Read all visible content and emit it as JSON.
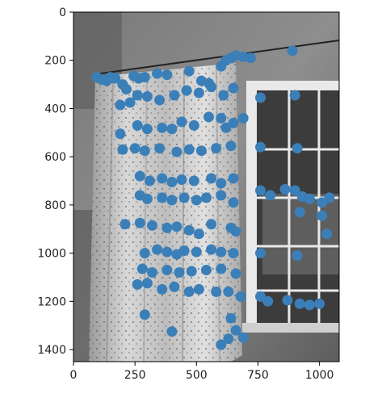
{
  "chart_data": {
    "type": "scatter",
    "title": "",
    "xlabel": "",
    "ylabel": "",
    "xlim": [
      0,
      1080
    ],
    "ylim": [
      1450,
      0
    ],
    "y_inverted": true,
    "x_ticks": [
      "0",
      "250",
      "500",
      "750",
      "1000"
    ],
    "y_ticks": [
      "0",
      "200",
      "400",
      "600",
      "800",
      "1000",
      "1200",
      "1400"
    ],
    "grid": false,
    "legend": "none",
    "marker_color": "#3b7fb8",
    "background": "grayscale photo of a room corner with a patterned curtain hanging beside a window",
    "series": [
      {
        "points": [
          [
            95,
            270
          ],
          [
            115,
            280
          ],
          [
            135,
            285
          ],
          [
            150,
            270
          ],
          [
            170,
            275
          ],
          [
            200,
            300
          ],
          [
            215,
            320
          ],
          [
            245,
            265
          ],
          [
            265,
            275
          ],
          [
            290,
            270
          ],
          [
            340,
            255
          ],
          [
            380,
            260
          ],
          [
            470,
            245
          ],
          [
            520,
            285
          ],
          [
            550,
            295
          ],
          [
            600,
            225
          ],
          [
            620,
            200
          ],
          [
            640,
            190
          ],
          [
            660,
            180
          ],
          [
            690,
            185
          ],
          [
            720,
            190
          ],
          [
            890,
            160
          ],
          [
            190,
            385
          ],
          [
            230,
            375
          ],
          [
            260,
            345
          ],
          [
            300,
            350
          ],
          [
            350,
            365
          ],
          [
            410,
            345
          ],
          [
            460,
            325
          ],
          [
            510,
            335
          ],
          [
            560,
            310
          ],
          [
            610,
            345
          ],
          [
            650,
            315
          ],
          [
            900,
            345
          ],
          [
            760,
            355
          ],
          [
            190,
            505
          ],
          [
            260,
            470
          ],
          [
            300,
            485
          ],
          [
            360,
            480
          ],
          [
            400,
            485
          ],
          [
            440,
            455
          ],
          [
            490,
            470
          ],
          [
            550,
            435
          ],
          [
            600,
            440
          ],
          [
            620,
            480
          ],
          [
            650,
            460
          ],
          [
            690,
            440
          ],
          [
            200,
            570
          ],
          [
            250,
            565
          ],
          [
            290,
            575
          ],
          [
            350,
            565
          ],
          [
            420,
            580
          ],
          [
            470,
            570
          ],
          [
            520,
            575
          ],
          [
            580,
            565
          ],
          [
            640,
            555
          ],
          [
            760,
            560
          ],
          [
            910,
            565
          ],
          [
            270,
            680
          ],
          [
            310,
            700
          ],
          [
            360,
            690
          ],
          [
            400,
            705
          ],
          [
            440,
            695
          ],
          [
            490,
            700
          ],
          [
            560,
            690
          ],
          [
            600,
            710
          ],
          [
            650,
            690
          ],
          [
            270,
            760
          ],
          [
            300,
            775
          ],
          [
            360,
            770
          ],
          [
            400,
            780
          ],
          [
            450,
            770
          ],
          [
            500,
            780
          ],
          [
            540,
            770
          ],
          [
            600,
            760
          ],
          [
            650,
            790
          ],
          [
            760,
            740
          ],
          [
            800,
            760
          ],
          [
            860,
            735
          ],
          [
            900,
            740
          ],
          [
            930,
            765
          ],
          [
            960,
            775
          ],
          [
            1010,
            790
          ],
          [
            1040,
            770
          ],
          [
            210,
            880
          ],
          [
            270,
            875
          ],
          [
            320,
            885
          ],
          [
            380,
            895
          ],
          [
            420,
            890
          ],
          [
            470,
            905
          ],
          [
            510,
            920
          ],
          [
            560,
            880
          ],
          [
            640,
            895
          ],
          [
            660,
            910
          ],
          [
            920,
            830
          ],
          [
            1010,
            845
          ],
          [
            1030,
            920
          ],
          [
            290,
            1000
          ],
          [
            340,
            985
          ],
          [
            380,
            995
          ],
          [
            420,
            1005
          ],
          [
            450,
            990
          ],
          [
            500,
            995
          ],
          [
            560,
            985
          ],
          [
            600,
            995
          ],
          [
            650,
            1000
          ],
          [
            760,
            1000
          ],
          [
            910,
            1010
          ],
          [
            280,
            1065
          ],
          [
            320,
            1080
          ],
          [
            380,
            1070
          ],
          [
            430,
            1080
          ],
          [
            480,
            1075
          ],
          [
            540,
            1070
          ],
          [
            600,
            1065
          ],
          [
            660,
            1085
          ],
          [
            260,
            1130
          ],
          [
            300,
            1125
          ],
          [
            360,
            1150
          ],
          [
            410,
            1140
          ],
          [
            470,
            1160
          ],
          [
            510,
            1150
          ],
          [
            580,
            1160
          ],
          [
            630,
            1160
          ],
          [
            680,
            1180
          ],
          [
            760,
            1180
          ],
          [
            790,
            1200
          ],
          [
            870,
            1195
          ],
          [
            920,
            1210
          ],
          [
            960,
            1215
          ],
          [
            1000,
            1210
          ],
          [
            290,
            1255
          ],
          [
            400,
            1325
          ],
          [
            600,
            1380
          ],
          [
            630,
            1355
          ],
          [
            660,
            1320
          ],
          [
            690,
            1350
          ],
          [
            640,
            1270
          ]
        ]
      }
    ]
  }
}
